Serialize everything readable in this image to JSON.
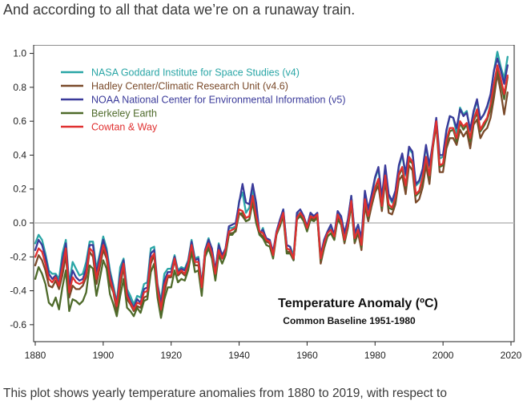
{
  "headline": "And according to all that data we’re on a runaway train.",
  "caption": "This plot shows yearly temperature anomalies from 1880 to 2019, with respect to",
  "chart_data": {
    "type": "line",
    "title": "",
    "annotation_title": "Temperature Anomaly (ºC)",
    "annotation_subtitle": "Common Baseline 1951-1980",
    "xlabel": "",
    "ylabel": "",
    "xlim": [
      1880,
      2020
    ],
    "ylim": [
      -0.7,
      1.05
    ],
    "x_ticks": [
      1880,
      1900,
      1920,
      1940,
      1960,
      1980,
      2000,
      2020
    ],
    "y_ticks": [
      1.0,
      0.8,
      0.6,
      0.4,
      0.2,
      0.0,
      -0.2,
      -0.4,
      -0.6
    ],
    "y_tick_labels": [
      "1.0",
      "0.8",
      "0.6",
      "0.4",
      "0.2",
      "0.0",
      "-0.2",
      "-0.4",
      "-0.6"
    ],
    "zero_line": true,
    "grid": false,
    "legend_position": "top-left",
    "x": [
      1880,
      1881,
      1882,
      1883,
      1884,
      1885,
      1886,
      1887,
      1888,
      1889,
      1890,
      1891,
      1892,
      1893,
      1894,
      1895,
      1896,
      1897,
      1898,
      1899,
      1900,
      1901,
      1902,
      1903,
      1904,
      1905,
      1906,
      1907,
      1908,
      1909,
      1910,
      1911,
      1912,
      1913,
      1914,
      1915,
      1916,
      1917,
      1918,
      1919,
      1920,
      1921,
      1922,
      1923,
      1924,
      1925,
      1926,
      1927,
      1928,
      1929,
      1930,
      1931,
      1932,
      1933,
      1934,
      1935,
      1936,
      1937,
      1938,
      1939,
      1940,
      1941,
      1942,
      1943,
      1944,
      1945,
      1946,
      1947,
      1948,
      1949,
      1950,
      1951,
      1952,
      1953,
      1954,
      1955,
      1956,
      1957,
      1958,
      1959,
      1960,
      1961,
      1962,
      1963,
      1964,
      1965,
      1966,
      1967,
      1968,
      1969,
      1970,
      1971,
      1972,
      1973,
      1974,
      1975,
      1976,
      1977,
      1978,
      1979,
      1980,
      1981,
      1982,
      1983,
      1984,
      1985,
      1986,
      1987,
      1988,
      1989,
      1990,
      1991,
      1992,
      1993,
      1994,
      1995,
      1996,
      1997,
      1998,
      1999,
      2000,
      2001,
      2002,
      2003,
      2004,
      2005,
      2006,
      2007,
      2008,
      2009,
      2010,
      2011,
      2012,
      2013,
      2014,
      2015,
      2016,
      2017,
      2018,
      2019
    ],
    "series": [
      {
        "name": "NASA Goddard Institute for Space Studies (v4)",
        "color": "#2aa6a6",
        "values": [
          -0.12,
          -0.07,
          -0.1,
          -0.18,
          -0.28,
          -0.3,
          -0.3,
          -0.33,
          -0.18,
          -0.1,
          -0.36,
          -0.23,
          -0.27,
          -0.31,
          -0.3,
          -0.23,
          -0.11,
          -0.11,
          -0.27,
          -0.18,
          -0.08,
          -0.15,
          -0.28,
          -0.37,
          -0.47,
          -0.26,
          -0.21,
          -0.39,
          -0.43,
          -0.48,
          -0.43,
          -0.44,
          -0.36,
          -0.35,
          -0.15,
          -0.14,
          -0.36,
          -0.46,
          -0.3,
          -0.27,
          -0.27,
          -0.19,
          -0.28,
          -0.26,
          -0.27,
          -0.22,
          -0.1,
          -0.21,
          -0.2,
          -0.36,
          -0.16,
          -0.09,
          -0.16,
          -0.29,
          -0.12,
          -0.2,
          -0.15,
          -0.03,
          -0.03,
          -0.02,
          0.13,
          0.18,
          0.06,
          0.09,
          0.2,
          0.09,
          -0.07,
          -0.03,
          -0.11,
          -0.11,
          -0.17,
          -0.07,
          0.01,
          0.08,
          -0.13,
          -0.14,
          -0.19,
          0.05,
          0.06,
          0.03,
          -0.03,
          0.06,
          0.03,
          0.05,
          -0.2,
          -0.11,
          -0.06,
          -0.02,
          -0.08,
          0.05,
          0.03,
          -0.08,
          0.01,
          0.16,
          -0.07,
          -0.01,
          -0.1,
          0.18,
          0.07,
          0.16,
          0.26,
          0.32,
          0.14,
          0.31,
          0.16,
          0.12,
          0.18,
          0.33,
          0.4,
          0.28,
          0.44,
          0.41,
          0.22,
          0.24,
          0.31,
          0.45,
          0.33,
          0.46,
          0.61,
          0.38,
          0.39,
          0.54,
          0.63,
          0.62,
          0.53,
          0.68,
          0.64,
          0.66,
          0.54,
          0.65,
          0.72,
          0.61,
          0.64,
          0.68,
          0.75,
          0.9,
          1.01,
          0.92,
          0.85,
          0.98
        ]
      },
      {
        "name": "Hadley Center/Climatic Research Unit (v4.6)",
        "color": "#7a4a2a",
        "values": [
          -0.25,
          -0.19,
          -0.22,
          -0.28,
          -0.37,
          -0.38,
          -0.34,
          -0.39,
          -0.31,
          -0.19,
          -0.44,
          -0.37,
          -0.39,
          -0.39,
          -0.37,
          -0.32,
          -0.17,
          -0.2,
          -0.36,
          -0.26,
          -0.16,
          -0.21,
          -0.36,
          -0.41,
          -0.52,
          -0.37,
          -0.26,
          -0.45,
          -0.48,
          -0.52,
          -0.49,
          -0.5,
          -0.44,
          -0.43,
          -0.24,
          -0.19,
          -0.39,
          -0.53,
          -0.41,
          -0.32,
          -0.32,
          -0.22,
          -0.31,
          -0.29,
          -0.31,
          -0.24,
          -0.13,
          -0.25,
          -0.25,
          -0.4,
          -0.18,
          -0.13,
          -0.19,
          -0.32,
          -0.17,
          -0.21,
          -0.17,
          -0.06,
          -0.06,
          -0.05,
          0.06,
          0.04,
          0.01,
          0.02,
          0.15,
          0.02,
          -0.06,
          -0.08,
          -0.11,
          -0.12,
          -0.2,
          -0.06,
          -0.02,
          0.05,
          -0.17,
          -0.17,
          -0.22,
          0.02,
          0.05,
          0.02,
          -0.04,
          0.03,
          0.02,
          0.04,
          -0.24,
          -0.15,
          -0.08,
          -0.06,
          -0.1,
          0.03,
          -0.01,
          -0.12,
          -0.03,
          0.11,
          -0.12,
          -0.06,
          -0.16,
          0.1,
          0.01,
          0.1,
          0.18,
          0.22,
          0.07,
          0.25,
          0.06,
          0.05,
          0.11,
          0.25,
          0.28,
          0.17,
          0.34,
          0.31,
          0.12,
          0.14,
          0.21,
          0.34,
          0.23,
          0.44,
          0.58,
          0.3,
          0.3,
          0.44,
          0.5,
          0.5,
          0.46,
          0.55,
          0.51,
          0.54,
          0.44,
          0.58,
          0.61,
          0.5,
          0.54,
          0.56,
          0.62,
          0.74,
          0.88,
          0.77,
          0.64,
          0.77
        ]
      },
      {
        "name": "NOAA National Center for Environmental Information (v5)",
        "color": "#3a3a9a",
        "values": [
          -0.16,
          -0.1,
          -0.13,
          -0.2,
          -0.3,
          -0.33,
          -0.31,
          -0.36,
          -0.22,
          -0.12,
          -0.38,
          -0.28,
          -0.32,
          -0.34,
          -0.33,
          -0.27,
          -0.13,
          -0.13,
          -0.3,
          -0.2,
          -0.1,
          -0.17,
          -0.3,
          -0.39,
          -0.48,
          -0.3,
          -0.22,
          -0.41,
          -0.46,
          -0.5,
          -0.45,
          -0.47,
          -0.39,
          -0.38,
          -0.18,
          -0.16,
          -0.37,
          -0.48,
          -0.34,
          -0.29,
          -0.29,
          -0.2,
          -0.29,
          -0.27,
          -0.28,
          -0.23,
          -0.11,
          -0.22,
          -0.21,
          -0.37,
          -0.16,
          -0.1,
          -0.15,
          -0.28,
          -0.13,
          -0.19,
          -0.15,
          -0.02,
          -0.01,
          0.0,
          0.12,
          0.23,
          0.12,
          0.11,
          0.23,
          0.12,
          -0.06,
          -0.04,
          -0.09,
          -0.1,
          -0.17,
          -0.05,
          0.02,
          0.08,
          -0.13,
          -0.14,
          -0.22,
          0.06,
          0.08,
          0.04,
          -0.02,
          0.06,
          0.04,
          0.06,
          -0.19,
          -0.1,
          -0.05,
          -0.01,
          -0.07,
          0.07,
          0.04,
          -0.06,
          0.02,
          0.16,
          -0.06,
          -0.01,
          -0.09,
          0.19,
          0.08,
          0.17,
          0.27,
          0.33,
          0.15,
          0.34,
          0.17,
          0.13,
          0.19,
          0.34,
          0.41,
          0.29,
          0.45,
          0.42,
          0.23,
          0.25,
          0.32,
          0.46,
          0.34,
          0.47,
          0.62,
          0.4,
          0.4,
          0.55,
          0.63,
          0.62,
          0.56,
          0.67,
          0.63,
          0.65,
          0.55,
          0.66,
          0.73,
          0.61,
          0.64,
          0.69,
          0.76,
          0.9,
          0.97,
          0.9,
          0.82,
          0.93
        ]
      },
      {
        "name": "Berkeley Earth",
        "color": "#4e6a2a",
        "values": [
          -0.33,
          -0.26,
          -0.3,
          -0.36,
          -0.47,
          -0.49,
          -0.44,
          -0.51,
          -0.38,
          -0.28,
          -0.52,
          -0.45,
          -0.46,
          -0.48,
          -0.46,
          -0.41,
          -0.25,
          -0.27,
          -0.43,
          -0.33,
          -0.22,
          -0.27,
          -0.42,
          -0.48,
          -0.55,
          -0.43,
          -0.33,
          -0.5,
          -0.52,
          -0.55,
          -0.5,
          -0.53,
          -0.46,
          -0.45,
          -0.29,
          -0.24,
          -0.44,
          -0.56,
          -0.45,
          -0.38,
          -0.38,
          -0.28,
          -0.35,
          -0.33,
          -0.34,
          -0.28,
          -0.17,
          -0.29,
          -0.28,
          -0.43,
          -0.2,
          -0.15,
          -0.21,
          -0.34,
          -0.19,
          -0.24,
          -0.19,
          -0.07,
          -0.07,
          -0.04,
          0.05,
          0.06,
          0.01,
          0.02,
          0.12,
          0.0,
          -0.07,
          -0.09,
          -0.13,
          -0.14,
          -0.21,
          -0.07,
          -0.02,
          0.04,
          -0.18,
          -0.18,
          -0.22,
          0.02,
          0.04,
          0.01,
          -0.05,
          0.02,
          0.01,
          0.03,
          -0.22,
          -0.14,
          -0.08,
          -0.06,
          -0.1,
          0.02,
          -0.01,
          -0.11,
          -0.03,
          0.11,
          -0.11,
          -0.05,
          -0.14,
          0.12,
          0.03,
          0.12,
          0.2,
          0.25,
          0.09,
          0.27,
          0.09,
          0.08,
          0.14,
          0.28,
          0.32,
          0.21,
          0.37,
          0.35,
          0.16,
          0.18,
          0.25,
          0.38,
          0.27,
          0.45,
          0.59,
          0.33,
          0.34,
          0.47,
          0.54,
          0.55,
          0.48,
          0.59,
          0.55,
          0.58,
          0.48,
          0.6,
          0.65,
          0.54,
          0.57,
          0.61,
          0.67,
          0.8,
          0.91,
          0.83,
          0.73,
          0.86
        ]
      },
      {
        "name": "Cowtan & Way",
        "color": "#e03030",
        "values": [
          -0.2,
          -0.15,
          -0.17,
          -0.24,
          -0.33,
          -0.35,
          -0.32,
          -0.37,
          -0.26,
          -0.15,
          -0.41,
          -0.32,
          -0.35,
          -0.36,
          -0.35,
          -0.3,
          -0.15,
          -0.17,
          -0.33,
          -0.23,
          -0.13,
          -0.19,
          -0.33,
          -0.4,
          -0.49,
          -0.33,
          -0.24,
          -0.43,
          -0.47,
          -0.51,
          -0.47,
          -0.48,
          -0.41,
          -0.4,
          -0.21,
          -0.18,
          -0.38,
          -0.51,
          -0.37,
          -0.31,
          -0.31,
          -0.21,
          -0.3,
          -0.28,
          -0.3,
          -0.24,
          -0.13,
          -0.23,
          -0.23,
          -0.38,
          -0.17,
          -0.12,
          -0.18,
          -0.3,
          -0.16,
          -0.21,
          -0.16,
          -0.05,
          -0.04,
          -0.03,
          0.08,
          0.07,
          0.03,
          0.04,
          0.16,
          0.04,
          -0.05,
          -0.06,
          -0.1,
          -0.11,
          -0.19,
          -0.06,
          0.0,
          0.06,
          -0.15,
          -0.16,
          -0.21,
          0.03,
          0.06,
          0.03,
          -0.03,
          0.04,
          0.03,
          0.05,
          -0.21,
          -0.12,
          -0.06,
          -0.04,
          -0.08,
          0.05,
          0.01,
          -0.1,
          -0.01,
          0.13,
          -0.09,
          -0.04,
          -0.13,
          0.14,
          0.04,
          0.13,
          0.21,
          0.26,
          0.1,
          0.28,
          0.11,
          0.09,
          0.15,
          0.29,
          0.33,
          0.22,
          0.39,
          0.36,
          0.17,
          0.19,
          0.27,
          0.39,
          0.28,
          0.46,
          0.6,
          0.34,
          0.35,
          0.49,
          0.56,
          0.56,
          0.5,
          0.6,
          0.57,
          0.59,
          0.5,
          0.61,
          0.67,
          0.55,
          0.59,
          0.62,
          0.7,
          0.82,
          0.93,
          0.85,
          0.76,
          0.87
        ]
      }
    ]
  }
}
